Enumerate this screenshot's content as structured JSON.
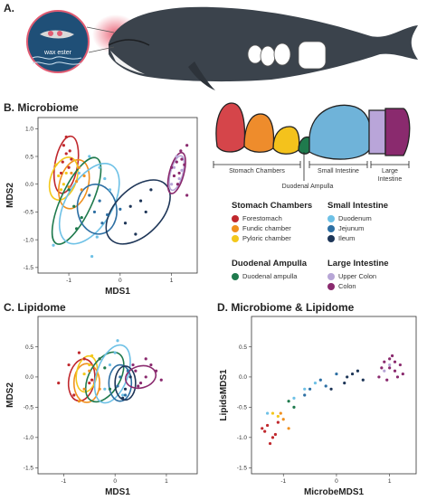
{
  "panels": {
    "a": {
      "label": "A.",
      "wax_label": "wax ester"
    },
    "b": {
      "label": "B. Microbiome"
    },
    "c": {
      "label": "C. Lipidome"
    },
    "d": {
      "label": "D. Microbiome & Lipidome"
    }
  },
  "gut": {
    "stomach": "Stomach Chambers",
    "duodenal": "Duodenal Ampulla",
    "small": "Small Intestine",
    "large_1": "Large",
    "large_2": "Intestine"
  },
  "legend": {
    "groups": [
      {
        "title": "Stomach Chambers",
        "items": [
          {
            "label": "Forestomach",
            "color": "#c0282d"
          },
          {
            "label": "Fundic chamber",
            "color": "#f0901e"
          },
          {
            "label": "Pyloric chamber",
            "color": "#f3c81b"
          }
        ]
      },
      {
        "title": "Small Intestine",
        "items": [
          {
            "label": "Duodenum",
            "color": "#6ec1e6"
          },
          {
            "label": "Jejunum",
            "color": "#2d6fa3"
          },
          {
            "label": "Ileum",
            "color": "#1d3557"
          }
        ]
      },
      {
        "title": "Duodenal Ampulla",
        "items": [
          {
            "label": "Duodenal ampulla",
            "color": "#1f7a4d"
          }
        ]
      },
      {
        "title": "Large Intestine",
        "items": [
          {
            "label": "Upper Colon",
            "color": "#b7a6d6"
          },
          {
            "label": "Colon",
            "color": "#8a2a6e"
          }
        ]
      }
    ]
  },
  "chart_data": [
    {
      "type": "scatter",
      "title": "B. Microbiome",
      "xlabel": "MDS1",
      "ylabel": "MDS2",
      "xlim": [
        -1.6,
        1.5
      ],
      "ylim": [
        -1.6,
        1.2
      ],
      "xticks": [
        -1,
        0,
        1
      ],
      "yticks": [
        1.0,
        0.5,
        0.0,
        -0.5,
        -1.0,
        -1.5
      ],
      "ellipses": [
        {
          "group": "Forestomach",
          "cx": -1.05,
          "cy": 0.35,
          "rx": 0.22,
          "ry": 0.52,
          "rot": 10
        },
        {
          "group": "Fundic chamber",
          "cx": -0.9,
          "cy": 0.0,
          "rx": 0.28,
          "ry": 0.45,
          "rot": 15
        },
        {
          "group": "Pyloric chamber",
          "cx": -1.1,
          "cy": 0.1,
          "rx": 0.25,
          "ry": 0.4,
          "rot": 20
        },
        {
          "group": "Duodenal ampulla",
          "cx": -0.85,
          "cy": -0.3,
          "rx": 0.3,
          "ry": 0.85,
          "rot": 25
        },
        {
          "group": "Duodenum",
          "cx": -0.6,
          "cy": -0.35,
          "rx": 0.45,
          "ry": 0.8,
          "rot": 30
        },
        {
          "group": "Jejunum",
          "cx": -0.45,
          "cy": -0.45,
          "rx": 0.38,
          "ry": 0.45,
          "rot": -10
        },
        {
          "group": "Ileum",
          "cx": 0.35,
          "cy": -0.5,
          "rx": 0.45,
          "ry": 0.7,
          "rot": 45
        },
        {
          "group": "Upper Colon",
          "cx": 1.1,
          "cy": 0.2,
          "rx": 0.12,
          "ry": 0.32,
          "rot": 15
        },
        {
          "group": "Colon",
          "cx": 1.1,
          "cy": 0.2,
          "rx": 0.14,
          "ry": 0.38,
          "rot": 15
        }
      ],
      "series": [
        {
          "name": "Forestomach",
          "points": [
            [
              -1.05,
              0.55
            ],
            [
              -1.1,
              0.7
            ],
            [
              -0.95,
              0.45
            ],
            [
              -1.0,
              0.3
            ],
            [
              -1.15,
              0.2
            ],
            [
              -1.05,
              0.85
            ],
            [
              -0.98,
              0.6
            ],
            [
              -1.12,
              0.4
            ]
          ]
        },
        {
          "name": "Fundic chamber",
          "points": [
            [
              -0.85,
              0.05
            ],
            [
              -0.75,
              -0.1
            ],
            [
              -0.95,
              0.2
            ],
            [
              -0.8,
              0.3
            ],
            [
              -1.0,
              -0.05
            ],
            [
              -0.7,
              0.15
            ]
          ]
        },
        {
          "name": "Pyloric chamber",
          "points": [
            [
              -1.2,
              0.15
            ],
            [
              -1.1,
              0.0
            ],
            [
              -1.25,
              0.35
            ],
            [
              -1.05,
              0.2
            ],
            [
              -1.15,
              -0.1
            ]
          ]
        },
        {
          "name": "Duodenal ampulla",
          "points": [
            [
              -0.9,
              -0.4
            ],
            [
              -0.75,
              -0.6
            ],
            [
              -1.0,
              -0.1
            ],
            [
              -0.85,
              -0.8
            ]
          ]
        },
        {
          "name": "Duodenum",
          "points": [
            [
              -0.6,
              0.5
            ],
            [
              -0.4,
              0.3
            ],
            [
              -0.2,
              -0.1
            ],
            [
              -0.8,
              0.2
            ],
            [
              -0.45,
              -0.95
            ],
            [
              -0.55,
              -1.3
            ],
            [
              -1.3,
              -1.1
            ],
            [
              -0.3,
              0.1
            ]
          ]
        },
        {
          "name": "Jejunum",
          "points": [
            [
              -0.4,
              -0.3
            ],
            [
              -0.5,
              -0.5
            ],
            [
              -0.35,
              -0.7
            ],
            [
              -0.6,
              -0.2
            ],
            [
              -0.25,
              -0.55
            ],
            [
              0.0,
              -0.45
            ]
          ]
        },
        {
          "name": "Ileum",
          "points": [
            [
              0.2,
              -0.4
            ],
            [
              0.4,
              -0.3
            ],
            [
              0.6,
              -0.1
            ],
            [
              0.1,
              -0.7
            ],
            [
              0.3,
              -0.9
            ],
            [
              0.5,
              -0.5
            ]
          ]
        },
        {
          "name": "Upper Colon",
          "points": [
            [
              1.05,
              0.3
            ],
            [
              1.15,
              0.1
            ],
            [
              1.1,
              0.5
            ],
            [
              1.0,
              0.0
            ],
            [
              1.2,
              0.25
            ]
          ]
        },
        {
          "name": "Colon",
          "points": [
            [
              1.1,
              0.4
            ],
            [
              1.15,
              0.2
            ],
            [
              1.05,
              0.15
            ],
            [
              1.2,
              0.45
            ],
            [
              1.0,
              0.3
            ],
            [
              1.12,
              0.0
            ],
            [
              1.18,
              0.6
            ],
            [
              1.3,
              0.7
            ],
            [
              1.3,
              -0.2
            ],
            [
              1.25,
              0.35
            ]
          ]
        }
      ]
    },
    {
      "type": "scatter",
      "title": "C. Lipidome",
      "xlabel": "MDS1",
      "ylabel": "MDS2",
      "xlim": [
        -1.5,
        1.6
      ],
      "ylim": [
        -1.6,
        1.0
      ],
      "xticks": [
        -1,
        0,
        1
      ],
      "yticks": [
        0.5,
        0.0,
        -0.5,
        -1.0,
        -1.5
      ],
      "ellipses": [
        {
          "group": "Forestomach",
          "cx": -0.65,
          "cy": -0.05,
          "rx": 0.25,
          "ry": 0.35,
          "rot": 10
        },
        {
          "group": "Fundic chamber",
          "cx": -0.55,
          "cy": -0.1,
          "rx": 0.25,
          "ry": 0.32,
          "rot": 0
        },
        {
          "group": "Pyloric chamber",
          "cx": -0.55,
          "cy": 0.05,
          "rx": 0.2,
          "ry": 0.3,
          "rot": 10
        },
        {
          "group": "Duodenal ampulla",
          "cx": -0.2,
          "cy": 0.0,
          "rx": 0.3,
          "ry": 0.45,
          "rot": 30
        },
        {
          "group": "Duodenum",
          "cx": -0.05,
          "cy": 0.05,
          "rx": 0.3,
          "ry": 0.5,
          "rot": 20
        },
        {
          "group": "Jejunum",
          "cx": 0.1,
          "cy": -0.1,
          "rx": 0.22,
          "ry": 0.3,
          "rot": 0
        },
        {
          "group": "Ileum",
          "cx": 0.2,
          "cy": -0.1,
          "rx": 0.2,
          "ry": 0.28,
          "rot": 0
        },
        {
          "group": "Colon",
          "cx": 0.5,
          "cy": 0.0,
          "rx": 0.3,
          "ry": 0.18,
          "rot": -15
        }
      ],
      "series": [
        {
          "name": "Forestomach",
          "points": [
            [
              -0.9,
              0.2
            ],
            [
              -0.8,
              -0.3
            ],
            [
              -0.6,
              0.3
            ],
            [
              -0.5,
              -0.1
            ],
            [
              -1.1,
              -0.1
            ],
            [
              -0.7,
              0.4
            ],
            [
              -0.3,
              0.3
            ],
            [
              -0.45,
              -0.05
            ]
          ]
        },
        {
          "name": "Fundic chamber",
          "points": [
            [
              -0.6,
              -0.2
            ],
            [
              -0.5,
              0.1
            ],
            [
              -0.7,
              -0.4
            ],
            [
              -0.3,
              -0.2
            ]
          ]
        },
        {
          "name": "Pyloric chamber",
          "points": [
            [
              -0.5,
              0.2
            ],
            [
              -0.45,
              0.35
            ],
            [
              -0.6,
              0.05
            ]
          ]
        },
        {
          "name": "Duodenal ampulla",
          "points": [
            [
              -0.2,
              0.15
            ],
            [
              -0.1,
              -0.2
            ],
            [
              -0.3,
              0.3
            ]
          ]
        },
        {
          "name": "Duodenum",
          "points": [
            [
              0.0,
              0.4
            ],
            [
              -0.2,
              -0.2
            ],
            [
              0.15,
              -0.3
            ],
            [
              0.05,
              0.6
            ],
            [
              -0.1,
              0.2
            ]
          ]
        },
        {
          "name": "Jejunum",
          "points": [
            [
              0.1,
              0.0
            ],
            [
              0.2,
              -0.3
            ],
            [
              0.05,
              -0.15
            ],
            [
              0.25,
              0.1
            ]
          ]
        },
        {
          "name": "Ileum",
          "points": [
            [
              0.2,
              -0.2
            ],
            [
              0.3,
              0.0
            ],
            [
              0.15,
              -0.35
            ]
          ]
        },
        {
          "name": "Colon",
          "points": [
            [
              0.4,
              0.1
            ],
            [
              0.6,
              0.0
            ],
            [
              0.7,
              0.2
            ],
            [
              0.5,
              -0.1
            ],
            [
              0.8,
              0.1
            ],
            [
              0.35,
              0.2
            ],
            [
              0.6,
              0.3
            ],
            [
              0.45,
              -0.15
            ],
            [
              0.9,
              -0.05
            ]
          ]
        }
      ]
    },
    {
      "type": "scatter",
      "title": "D. Microbiome & Lipidome",
      "xlabel": "MicrobeMDS1",
      "ylabel": "LipidsMDS1",
      "xlim": [
        -1.6,
        1.5
      ],
      "ylim": [
        -1.6,
        1.0
      ],
      "xticks": [
        -1,
        0,
        1
      ],
      "yticks": [
        0.5,
        0.0,
        -0.5,
        -1.0,
        -1.5
      ],
      "series": [
        {
          "name": "Forestomach",
          "points": [
            [
              -1.3,
              -0.8
            ],
            [
              -1.2,
              -1.0
            ],
            [
              -1.35,
              -0.9
            ],
            [
              -1.1,
              -0.75
            ],
            [
              -1.25,
              -1.1
            ],
            [
              -1.4,
              -0.85
            ],
            [
              -1.15,
              -0.95
            ]
          ]
        },
        {
          "name": "Fundic chamber",
          "points": [
            [
              -1.0,
              -0.7
            ],
            [
              -0.9,
              -0.85
            ],
            [
              -1.05,
              -0.6
            ]
          ]
        },
        {
          "name": "Pyloric chamber",
          "points": [
            [
              -1.2,
              -0.6
            ],
            [
              -1.1,
              -0.65
            ]
          ]
        },
        {
          "name": "Duodenal ampulla",
          "points": [
            [
              -0.9,
              -0.4
            ],
            [
              -0.8,
              -0.5
            ]
          ]
        },
        {
          "name": "Duodenum",
          "points": [
            [
              -1.3,
              -0.6
            ],
            [
              -0.6,
              -0.2
            ],
            [
              -0.4,
              -0.1
            ],
            [
              -0.8,
              -0.35
            ]
          ]
        },
        {
          "name": "Jejunum",
          "points": [
            [
              -0.5,
              -0.2
            ],
            [
              -0.3,
              -0.05
            ],
            [
              -0.2,
              -0.15
            ],
            [
              0.0,
              0.05
            ],
            [
              -0.6,
              -0.3
            ]
          ]
        },
        {
          "name": "Ileum",
          "points": [
            [
              0.2,
              0.0
            ],
            [
              0.3,
              0.05
            ],
            [
              0.5,
              -0.05
            ],
            [
              0.15,
              -0.1
            ],
            [
              0.4,
              0.1
            ],
            [
              -0.1,
              -0.2
            ]
          ]
        },
        {
          "name": "Upper Colon",
          "points": [
            [
              0.9,
              0.1
            ],
            [
              1.0,
              0.2
            ]
          ]
        },
        {
          "name": "Colon",
          "points": [
            [
              0.8,
              0.0
            ],
            [
              0.9,
              0.25
            ],
            [
              1.0,
              0.3
            ],
            [
              1.1,
              0.1
            ],
            [
              1.2,
              0.2
            ],
            [
              0.95,
              -0.05
            ],
            [
              1.05,
              0.35
            ],
            [
              1.15,
              0.0
            ],
            [
              1.0,
              0.15
            ],
            [
              1.1,
              0.25
            ],
            [
              1.25,
              0.05
            ],
            [
              0.85,
              0.15
            ]
          ]
        }
      ]
    }
  ]
}
